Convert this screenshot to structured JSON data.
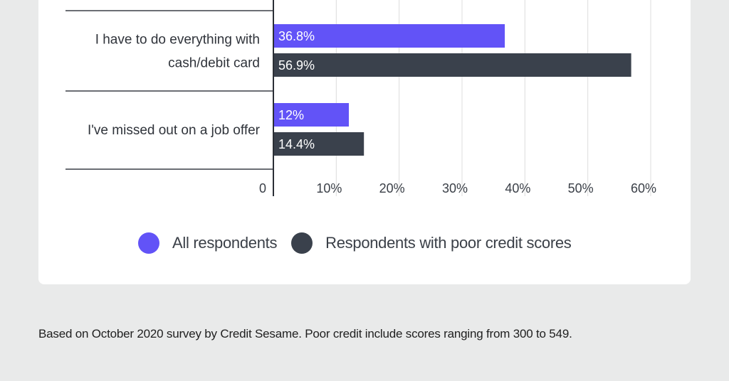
{
  "chart_data": {
    "type": "bar",
    "orientation": "horizontal",
    "categories": [
      [
        "I have to do everything with",
        "cash/debit card"
      ],
      [
        "I've missed out on a job offer"
      ]
    ],
    "series": [
      {
        "name": "All respondents",
        "values": [
          36.8,
          12
        ],
        "labels": [
          "36.8%",
          "12%"
        ],
        "color": "#6253f7"
      },
      {
        "name": "Respondents with poor credit scores",
        "values": [
          56.9,
          14.4
        ],
        "labels": [
          "56.9%",
          "14.4%"
        ],
        "color": "#3a414c"
      }
    ],
    "x_ticks": [
      {
        "value": 0,
        "label": "0"
      },
      {
        "value": 10,
        "label": "10%"
      },
      {
        "value": 20,
        "label": "20%"
      },
      {
        "value": 30,
        "label": "30%"
      },
      {
        "value": 40,
        "label": "40%"
      },
      {
        "value": 50,
        "label": "50%"
      },
      {
        "value": 60,
        "label": "60%"
      }
    ],
    "xlim": [
      0,
      60
    ],
    "grid": true,
    "legend_position": "bottom"
  },
  "footnote": "Based on October 2020 survey by Credit Sesame. Poor credit include scores ranging from  300 to 549."
}
